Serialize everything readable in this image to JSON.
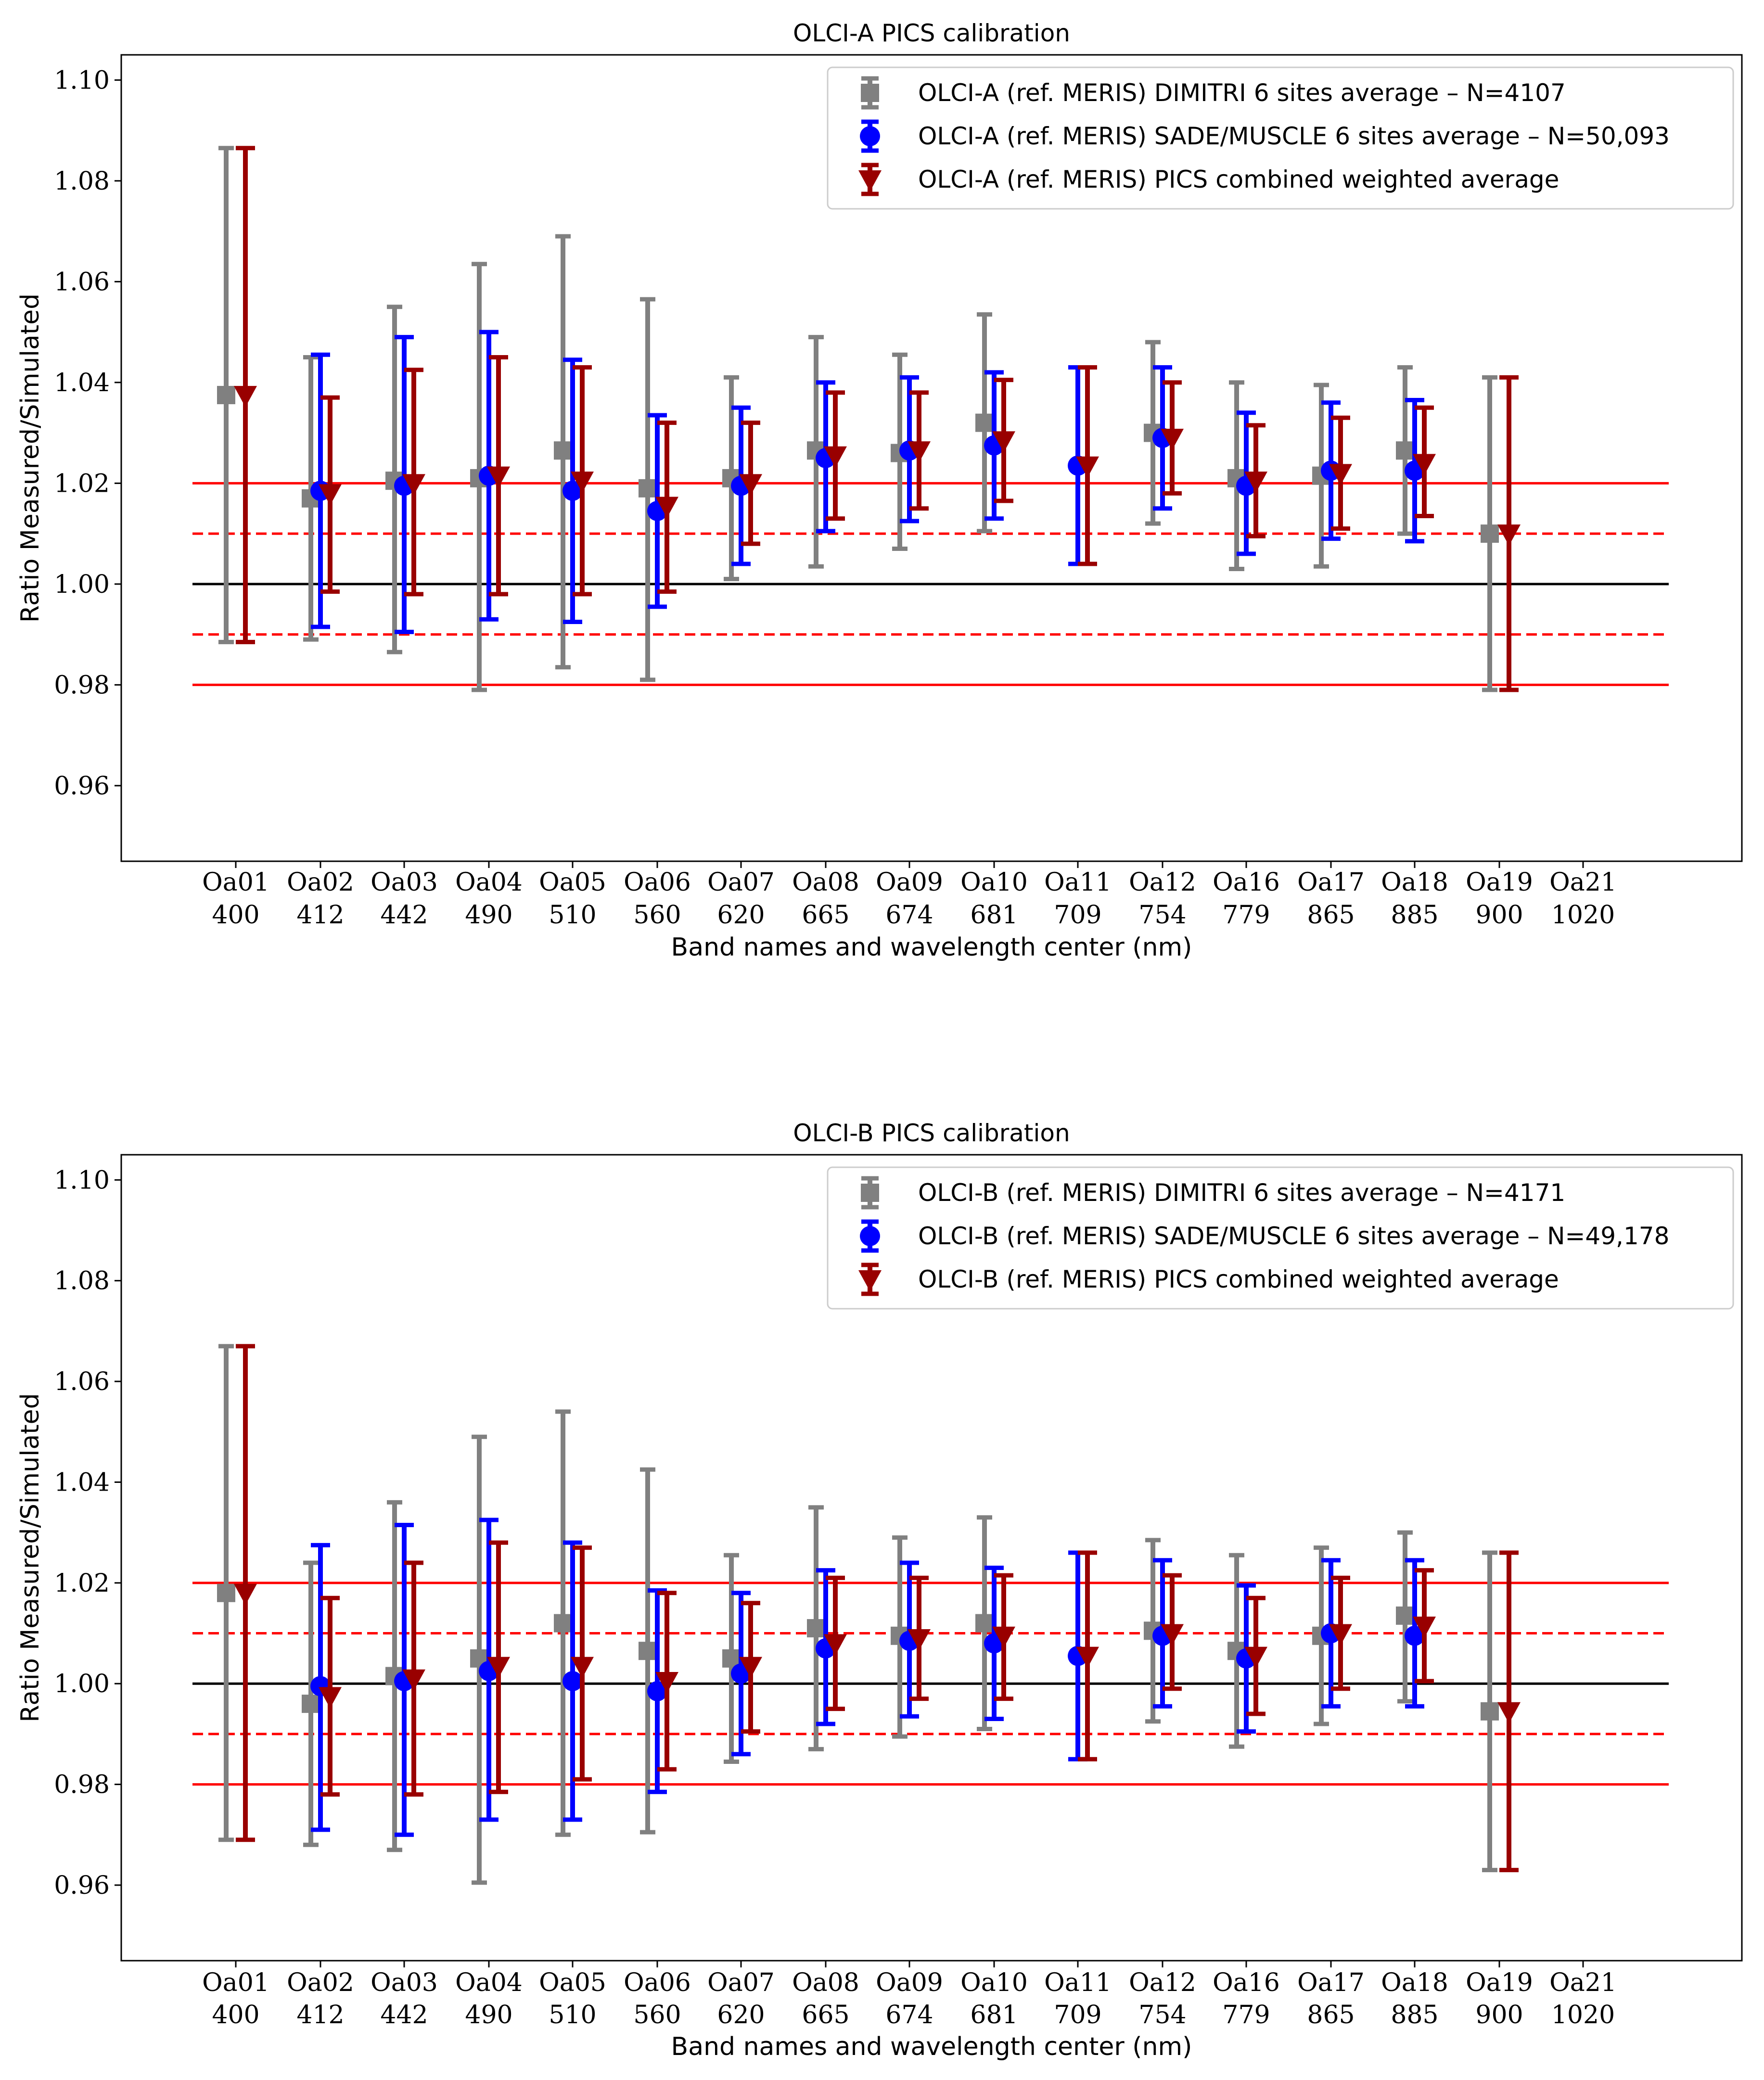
{
  "chart_data": [
    {
      "type": "scatter",
      "title": "OLCI-A PICS calibration",
      "xlabel": "Band names and wavelength center (nm)",
      "ylabel": "Ratio Measured/Simulated",
      "ylim": [
        0.945,
        1.105
      ],
      "yticks": [
        "0.96",
        "0.98",
        "1.00",
        "1.02",
        "1.04",
        "1.06",
        "1.08",
        "1.10"
      ],
      "categories": [
        "Oa01",
        "Oa02",
        "Oa03",
        "Oa04",
        "Oa05",
        "Oa06",
        "Oa07",
        "Oa08",
        "Oa09",
        "Oa10",
        "Oa11",
        "Oa12",
        "Oa16",
        "Oa17",
        "Oa18",
        "Oa19",
        "Oa21"
      ],
      "wavelengths": [
        "400",
        "412",
        "442",
        "490",
        "510",
        "560",
        "620",
        "665",
        "674",
        "681",
        "709",
        "754",
        "779",
        "865",
        "885",
        "900",
        "1020"
      ],
      "reference_lines": [
        {
          "y": 1.0,
          "color": "#000000",
          "style": "solid"
        },
        {
          "y": 1.01,
          "color": "#ff0000",
          "style": "dashed"
        },
        {
          "y": 0.99,
          "color": "#ff0000",
          "style": "dashed"
        },
        {
          "y": 1.02,
          "color": "#ff0000",
          "style": "solid"
        },
        {
          "y": 0.98,
          "color": "#ff0000",
          "style": "solid"
        }
      ],
      "legend_position": "top-right",
      "series": [
        {
          "name": "OLCI-A (ref. MERIS) DIMITRI 6 sites average – N=4107",
          "marker": "square",
          "color": "#808080",
          "values": [
            1.0375,
            1.017,
            1.0205,
            1.021,
            1.0265,
            1.019,
            1.021,
            1.0265,
            1.026,
            1.032,
            null,
            1.03,
            1.021,
            1.0215,
            1.0265,
            1.01,
            null
          ],
          "err_low": [
            0.9885,
            0.989,
            0.9865,
            0.979,
            0.9835,
            0.981,
            1.001,
            1.0035,
            1.007,
            1.0105,
            null,
            1.012,
            1.003,
            1.0035,
            1.01,
            0.979,
            null
          ],
          "err_high": [
            1.0865,
            1.045,
            1.055,
            1.0635,
            1.069,
            1.0565,
            1.041,
            1.049,
            1.0455,
            1.0535,
            null,
            1.048,
            1.04,
            1.0395,
            1.043,
            1.041,
            null
          ]
        },
        {
          "name": "OLCI-A (ref. MERIS) SADE/MUSCLE 6 sites average – N=50,093",
          "marker": "circle",
          "color": "#0000ff",
          "values": [
            null,
            1.0185,
            1.0195,
            1.0215,
            1.0185,
            1.0145,
            1.0195,
            1.025,
            1.0265,
            1.0275,
            1.0235,
            1.029,
            1.0195,
            1.0225,
            1.0225,
            null,
            null
          ],
          "err_low": [
            null,
            0.9915,
            0.9905,
            0.993,
            0.9925,
            0.9955,
            1.004,
            1.0105,
            1.0125,
            1.013,
            1.004,
            1.015,
            1.006,
            1.009,
            1.0085,
            null,
            null
          ],
          "err_high": [
            null,
            1.0455,
            1.049,
            1.05,
            1.0445,
            1.0335,
            1.035,
            1.04,
            1.041,
            1.042,
            1.043,
            1.043,
            1.034,
            1.036,
            1.0365,
            null,
            null
          ]
        },
        {
          "name": "OLCI-A (ref. MERIS) PICS combined weighted average",
          "marker": "triangle-down",
          "color": "#990000",
          "values": [
            1.0375,
            1.018,
            1.02,
            1.0215,
            1.0205,
            1.0155,
            1.02,
            1.0255,
            1.0265,
            1.0285,
            1.0235,
            1.029,
            1.0205,
            1.022,
            1.024,
            1.01,
            null
          ],
          "err_low": [
            0.9885,
            0.9985,
            0.998,
            0.998,
            0.998,
            0.9985,
            1.008,
            1.013,
            1.015,
            1.0165,
            1.004,
            1.018,
            1.0095,
            1.011,
            1.0135,
            0.979,
            null
          ],
          "err_high": [
            1.0865,
            1.037,
            1.0425,
            1.045,
            1.043,
            1.032,
            1.032,
            1.038,
            1.038,
            1.0405,
            1.043,
            1.04,
            1.0315,
            1.033,
            1.035,
            1.041,
            null
          ]
        }
      ]
    },
    {
      "type": "scatter",
      "title": "OLCI-B PICS calibration",
      "xlabel": "Band names and wavelength center (nm)",
      "ylabel": "Ratio Measured/Simulated",
      "ylim": [
        0.945,
        1.105
      ],
      "yticks": [
        "0.96",
        "0.98",
        "1.00",
        "1.02",
        "1.04",
        "1.06",
        "1.08",
        "1.10"
      ],
      "categories": [
        "Oa01",
        "Oa02",
        "Oa03",
        "Oa04",
        "Oa05",
        "Oa06",
        "Oa07",
        "Oa08",
        "Oa09",
        "Oa10",
        "Oa11",
        "Oa12",
        "Oa16",
        "Oa17",
        "Oa18",
        "Oa19",
        "Oa21"
      ],
      "wavelengths": [
        "400",
        "412",
        "442",
        "490",
        "510",
        "560",
        "620",
        "665",
        "674",
        "681",
        "709",
        "754",
        "779",
        "865",
        "885",
        "900",
        "1020"
      ],
      "reference_lines": [
        {
          "y": 1.0,
          "color": "#000000",
          "style": "solid"
        },
        {
          "y": 1.01,
          "color": "#ff0000",
          "style": "dashed"
        },
        {
          "y": 0.99,
          "color": "#ff0000",
          "style": "dashed"
        },
        {
          "y": 1.02,
          "color": "#ff0000",
          "style": "solid"
        },
        {
          "y": 0.98,
          "color": "#ff0000",
          "style": "solid"
        }
      ],
      "legend_position": "top-right",
      "series": [
        {
          "name": "OLCI-B (ref. MERIS) DIMITRI 6 sites average – N=4171",
          "marker": "square",
          "color": "#808080",
          "values": [
            1.018,
            0.996,
            1.0015,
            1.005,
            1.012,
            1.0065,
            1.005,
            1.011,
            1.0095,
            1.012,
            null,
            1.0105,
            1.0065,
            1.0095,
            1.0135,
            0.9945,
            null
          ],
          "err_low": [
            0.969,
            0.968,
            0.967,
            0.9605,
            0.97,
            0.9705,
            0.9845,
            0.987,
            0.9895,
            0.991,
            null,
            0.9925,
            0.9875,
            0.992,
            0.9965,
            0.963,
            null
          ],
          "err_high": [
            1.067,
            1.024,
            1.036,
            1.049,
            1.054,
            1.0425,
            1.0255,
            1.035,
            1.029,
            1.033,
            null,
            1.0285,
            1.0255,
            1.027,
            1.03,
            1.026,
            null
          ]
        },
        {
          "name": "OLCI-B (ref. MERIS) SADE/MUSCLE 6 sites average – N=49,178",
          "marker": "circle",
          "color": "#0000ff",
          "values": [
            null,
            0.9995,
            1.0005,
            1.0025,
            1.0005,
            0.9985,
            1.002,
            1.007,
            1.0085,
            1.008,
            1.0055,
            1.0095,
            1.005,
            1.01,
            1.0095,
            null,
            null
          ],
          "err_low": [
            null,
            0.971,
            0.97,
            0.973,
            0.973,
            0.9785,
            0.986,
            0.992,
            0.9935,
            0.993,
            0.985,
            0.9955,
            0.9905,
            0.9955,
            0.9955,
            null,
            null
          ],
          "err_high": [
            null,
            1.0275,
            1.0315,
            1.0325,
            1.028,
            1.0185,
            1.018,
            1.0225,
            1.024,
            1.023,
            1.026,
            1.0245,
            1.0195,
            1.0245,
            1.0245,
            null,
            null
          ]
        },
        {
          "name": "OLCI-B (ref. MERIS) PICS combined weighted average",
          "marker": "triangle-down",
          "color": "#990000",
          "values": [
            1.018,
            0.9975,
            1.001,
            1.0035,
            1.0035,
            1.0005,
            1.0035,
            1.008,
            1.009,
            1.0095,
            1.0055,
            1.01,
            1.0055,
            1.01,
            1.0115,
            0.9945,
            null
          ],
          "err_low": [
            0.969,
            0.978,
            0.978,
            0.9785,
            0.981,
            0.983,
            0.9905,
            0.995,
            0.997,
            0.997,
            0.985,
            0.999,
            0.994,
            0.999,
            1.0005,
            0.963,
            null
          ],
          "err_high": [
            1.067,
            1.017,
            1.024,
            1.028,
            1.027,
            1.018,
            1.016,
            1.021,
            1.021,
            1.0215,
            1.026,
            1.0215,
            1.017,
            1.021,
            1.0225,
            1.026,
            null
          ]
        }
      ]
    }
  ]
}
